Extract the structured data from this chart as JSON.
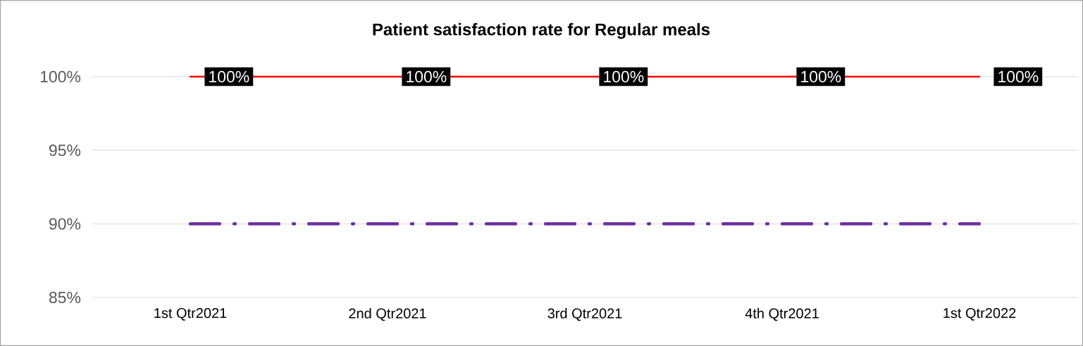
{
  "chart_data": {
    "type": "line",
    "title": "Patient satisfaction rate for Regular meals",
    "categories": [
      "1st Qtr2021",
      "2nd Qtr2021",
      "3rd Qtr2021",
      "4th Qtr2021",
      "1st Qtr2022"
    ],
    "series": [
      {
        "color": "#ff0000",
        "values": [
          100,
          100,
          100,
          100,
          100
        ],
        "value_labels": [
          "100%",
          "100%",
          "100%",
          "100%",
          "100%"
        ]
      },
      {
        "color": "#7030a0",
        "values": [
          90,
          90,
          90,
          90,
          90
        ],
        "line_style": "dashed"
      }
    ],
    "ylim": [
      85,
      100
    ],
    "yticks": [
      {
        "value": 85,
        "label": "85%"
      },
      {
        "value": 90,
        "label": "90%"
      },
      {
        "value": 95,
        "label": "95%"
      },
      {
        "value": 100,
        "label": "100%"
      }
    ],
    "grid": "y",
    "marker": "none"
  }
}
